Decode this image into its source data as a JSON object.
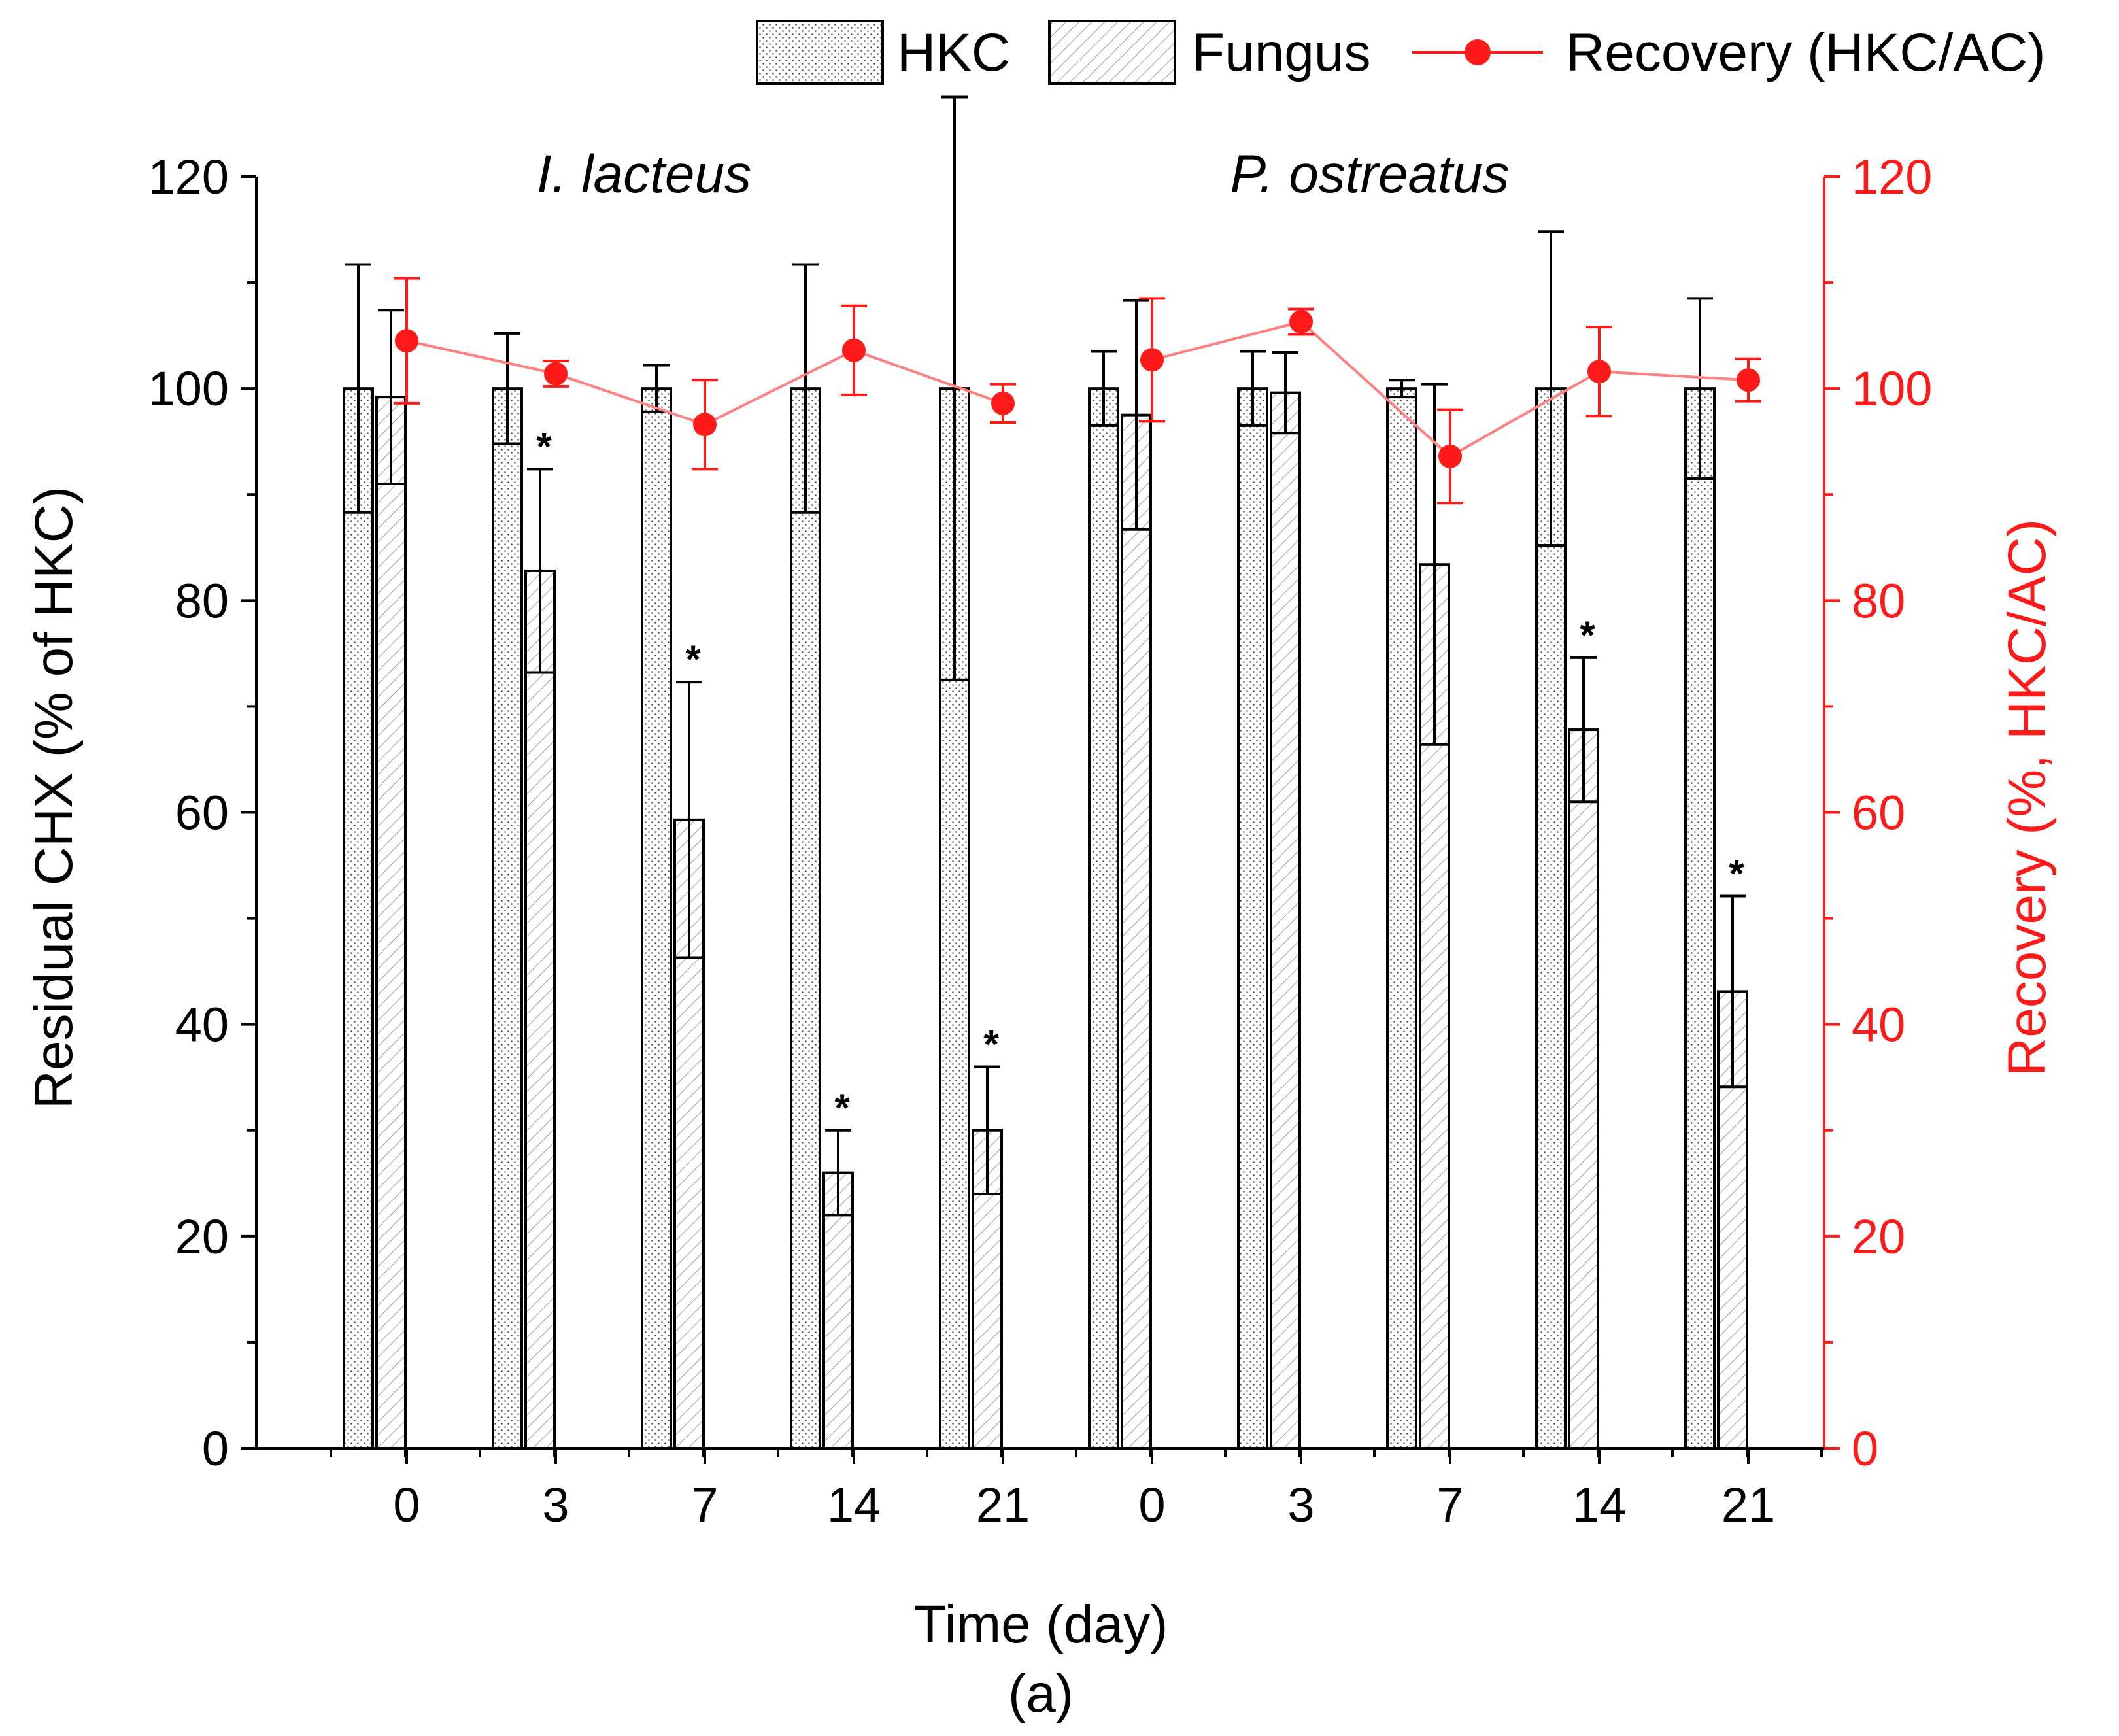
{
  "chart_data": {
    "type": "bar",
    "title": "",
    "caption": "(a)",
    "xlabel": "Time (day)",
    "ylabel": "Residual CHX (% of HKC)",
    "y2label": "Recovery (%, HKC/AC)",
    "ylim": [
      0,
      120
    ],
    "y2lim": [
      0,
      120
    ],
    "yticks": [
      0,
      20,
      40,
      60,
      80,
      100,
      120
    ],
    "groups": [
      {
        "name": "I. lacteus",
        "categories": [
          "0",
          "3",
          "7",
          "14",
          "21"
        ]
      },
      {
        "name": "P. ostreatus",
        "categories": [
          "0",
          "3",
          "7",
          "14",
          "21"
        ]
      }
    ],
    "series": [
      {
        "name": "HKC",
        "kind": "bar",
        "pattern": "dots",
        "values": [
          100,
          100,
          100,
          100,
          100,
          100,
          100,
          100,
          100,
          100
        ],
        "errors": [
          11.7,
          5.2,
          2.2,
          11.7,
          27.5,
          3.5,
          3.5,
          0.8,
          14.8,
          8.5
        ]
      },
      {
        "name": "Fungus",
        "kind": "bar",
        "pattern": "hatch",
        "values": [
          99.2,
          82.8,
          59.3,
          26,
          30,
          97.5,
          99.6,
          83.4,
          67.8,
          43.1
        ],
        "errors": [
          8.2,
          9.6,
          13,
          4,
          6,
          10.8,
          3.8,
          17,
          6.8,
          9
        ],
        "significant": [
          false,
          true,
          true,
          true,
          true,
          false,
          false,
          false,
          true,
          true
        ]
      },
      {
        "name": "Recovery (HKC/AC)",
        "kind": "line",
        "axis": "right",
        "color": "#ff1a1a",
        "values": [
          104.5,
          101.4,
          96.6,
          103.6,
          98.6,
          102.7,
          106.3,
          93.6,
          101.6,
          100.8
        ],
        "errors": [
          5.9,
          1.2,
          4.2,
          4.2,
          1.8,
          5.8,
          1.2,
          4.4,
          4.2,
          2
        ]
      }
    ],
    "significance_marker": "*",
    "legend_position": "top-right"
  }
}
